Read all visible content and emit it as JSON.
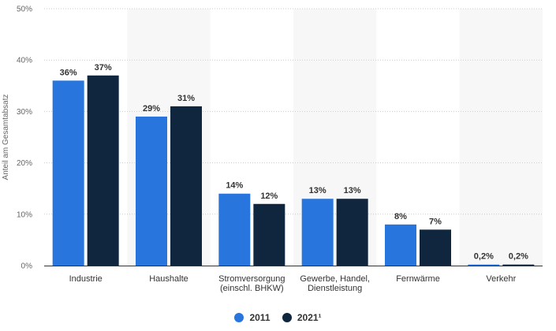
{
  "chart_data": {
    "type": "bar",
    "ylabel": "Anteil am Gesamtabsatz",
    "xlabel": "",
    "ylim": [
      0,
      50
    ],
    "y_ticks": [
      "0%",
      "10%",
      "20%",
      "30%",
      "40%",
      "50%"
    ],
    "y_tick_values": [
      0,
      10,
      20,
      30,
      40,
      50
    ],
    "grid": true,
    "legend_position": "bottom",
    "categories": [
      [
        "Industrie"
      ],
      [
        "Haushalte"
      ],
      [
        "Stromversorgung",
        "(einschl. BHKW)"
      ],
      [
        "Gewerbe, Handel,",
        "Dienstleistung"
      ],
      [
        "Fernwärme"
      ],
      [
        "Verkehr"
      ]
    ],
    "series": [
      {
        "name": "2011",
        "color": "#2876dd",
        "values": [
          36,
          29,
          14,
          13,
          8,
          0.2
        ],
        "labels": [
          "36%",
          "29%",
          "14%",
          "13%",
          "8%",
          "0,2%"
        ]
      },
      {
        "name": "2021¹",
        "color": "#10263f",
        "values": [
          37,
          31,
          12,
          13,
          7,
          0.2
        ],
        "labels": [
          "37%",
          "31%",
          "12%",
          "13%",
          "7%",
          "0,2%"
        ]
      }
    ]
  },
  "legend": {
    "item_2011": "2011",
    "item_2021": "2021¹"
  }
}
